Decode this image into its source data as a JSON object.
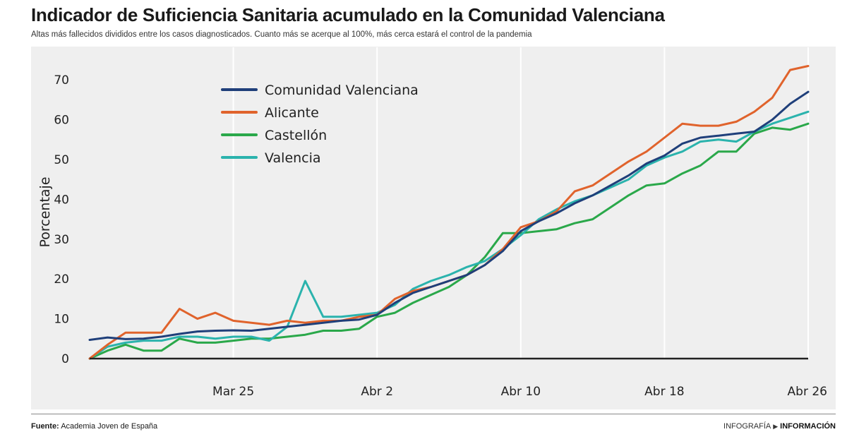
{
  "header": {
    "title": "Indicador de Suficiencia Sanitaria acumulado en la Comunidad Valenciana",
    "subtitle": "Altas más fallecidos divididos entre los casos diagnosticados. Cuanto más se acerque al 100%, más cerca estará el control de la pandemia"
  },
  "footer": {
    "source_label": "Fuente:",
    "source_text": "Academia Joven de España",
    "credit_label": "INFOGRAFÍA",
    "credit_brand": "INFORMACIÓN"
  },
  "colors": {
    "comunidad": "#1f3f7a",
    "alicante": "#e0632c",
    "castellon": "#2aa84a",
    "valencia": "#2bb3ad",
    "grid": "#ffffff",
    "axis": "#222222"
  },
  "chart_data": {
    "type": "line",
    "xlabel": "",
    "ylabel": "Porcentaje",
    "ylim": [
      0,
      75
    ],
    "yticks": [
      0,
      10,
      20,
      30,
      40,
      50,
      60,
      70
    ],
    "x_tick_labels": [
      "Mar 25",
      "Abr 2",
      "Abr 10",
      "Abr 18",
      "Abr 26"
    ],
    "x_tick_positions": [
      8,
      16,
      24,
      32,
      40
    ],
    "x_range": [
      0,
      40
    ],
    "grid": "vertical",
    "legend_position": "top-left",
    "series": [
      {
        "name": "Comunidad Valenciana",
        "color_key": "comunidad",
        "values": [
          4.7,
          5.3,
          4.9,
          5.0,
          5.5,
          6.2,
          6.8,
          7.0,
          7.1,
          7.0,
          7.5,
          8.0,
          8.5,
          9.0,
          9.5,
          9.8,
          11.0,
          14.0,
          16.5,
          18.0,
          19.5,
          21.0,
          23.5,
          27.0,
          32.0,
          34.5,
          36.5,
          39.0,
          41.0,
          43.5,
          46.0,
          49.0,
          51.0,
          54.0,
          55.5,
          56.0,
          56.5,
          57.0,
          60.0,
          64.0,
          67.0
        ]
      },
      {
        "name": "Alicante",
        "color_key": "alicante",
        "values": [
          0,
          3.5,
          6.5,
          6.5,
          6.5,
          12.5,
          10.0,
          11.5,
          9.5,
          9.0,
          8.5,
          9.5,
          9.0,
          9.5,
          9.5,
          10.5,
          11.0,
          15.0,
          17.0,
          18.0,
          19.5,
          21.0,
          23.5,
          27.5,
          33.0,
          34.5,
          37.0,
          42.0,
          43.5,
          46.5,
          49.5,
          52.0,
          55.5,
          59.0,
          58.5,
          58.5,
          59.5,
          62.0,
          65.5,
          72.5,
          73.5
        ]
      },
      {
        "name": "Castellón",
        "color_key": "castellon",
        "values": [
          0,
          2.0,
          3.5,
          2.0,
          2.0,
          5.0,
          4.0,
          4.0,
          4.5,
          5.0,
          5.0,
          5.5,
          6.0,
          7.0,
          7.0,
          7.5,
          10.5,
          11.5,
          14.0,
          16.0,
          18.0,
          21.0,
          25.5,
          31.5,
          31.5,
          32.0,
          32.5,
          34.0,
          35.0,
          38.0,
          41.0,
          43.5,
          44.0,
          46.5,
          48.5,
          52.0,
          52.0,
          56.5,
          58.0,
          57.5,
          59.0
        ]
      },
      {
        "name": "Valencia",
        "color_key": "valencia",
        "values": [
          0,
          3.0,
          4.0,
          4.5,
          4.5,
          5.5,
          5.5,
          5.0,
          5.5,
          5.5,
          4.5,
          8.0,
          19.5,
          10.5,
          10.5,
          11.0,
          11.5,
          13.5,
          17.5,
          19.5,
          21.0,
          23.0,
          24.5,
          27.5,
          31.0,
          35.0,
          37.5,
          39.5,
          41.0,
          43.0,
          45.0,
          48.5,
          50.5,
          52.0,
          54.5,
          55.0,
          54.5,
          57.0,
          59.0,
          60.5,
          62.0
        ]
      }
    ]
  }
}
